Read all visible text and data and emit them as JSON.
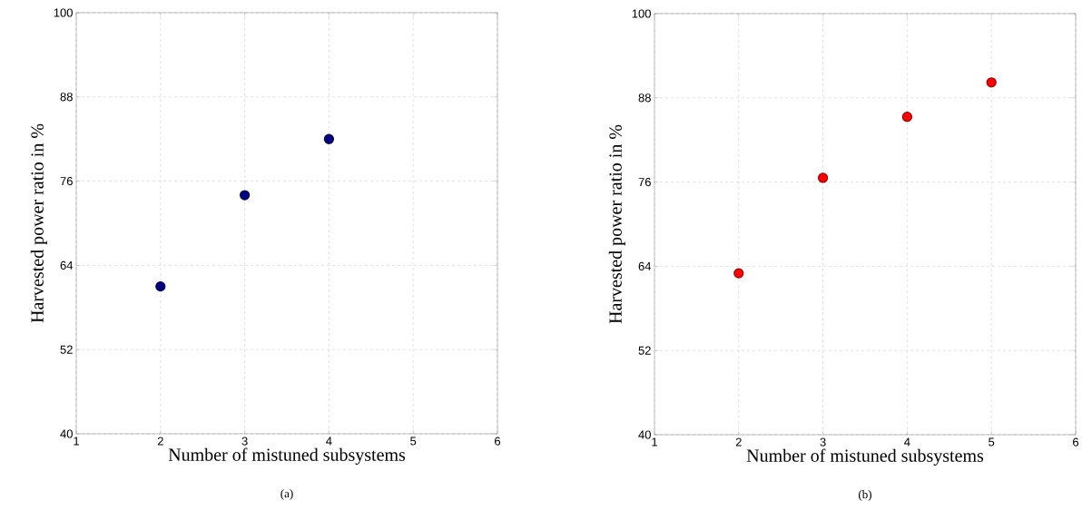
{
  "chart_data": [
    {
      "type": "scatter",
      "xlabel": "Number of mistuned subsystems",
      "ylabel": "Harvested power ratio in %",
      "annotations": [
        "(a)"
      ],
      "x": [
        2,
        3,
        4
      ],
      "series": [
        {
          "color": "#000080",
          "values": [
            61,
            74,
            82
          ]
        }
      ],
      "xlim": [
        1,
        6
      ],
      "xticks": [
        1,
        2,
        3,
        4,
        5,
        6
      ],
      "ylim": [
        40,
        100
      ],
      "yticks": [
        40,
        52,
        64,
        76,
        88,
        100
      ],
      "grid": true,
      "marker": "circle"
    },
    {
      "type": "scatter",
      "xlabel": "Number of mistuned subsystems",
      "ylabel": "Harvested power ratio in %",
      "annotations": [
        "(b)"
      ],
      "x": [
        2,
        3,
        4,
        5
      ],
      "series": [
        {
          "color": "#ff0000",
          "values": [
            63,
            76.6,
            85.3,
            90.2
          ]
        }
      ],
      "xlim": [
        1,
        6
      ],
      "xticks": [
        1,
        2,
        3,
        4,
        5,
        6
      ],
      "ylim": [
        40,
        100
      ],
      "yticks": [
        40,
        52,
        64,
        76,
        88,
        100
      ],
      "grid": true,
      "marker": "circle"
    }
  ]
}
